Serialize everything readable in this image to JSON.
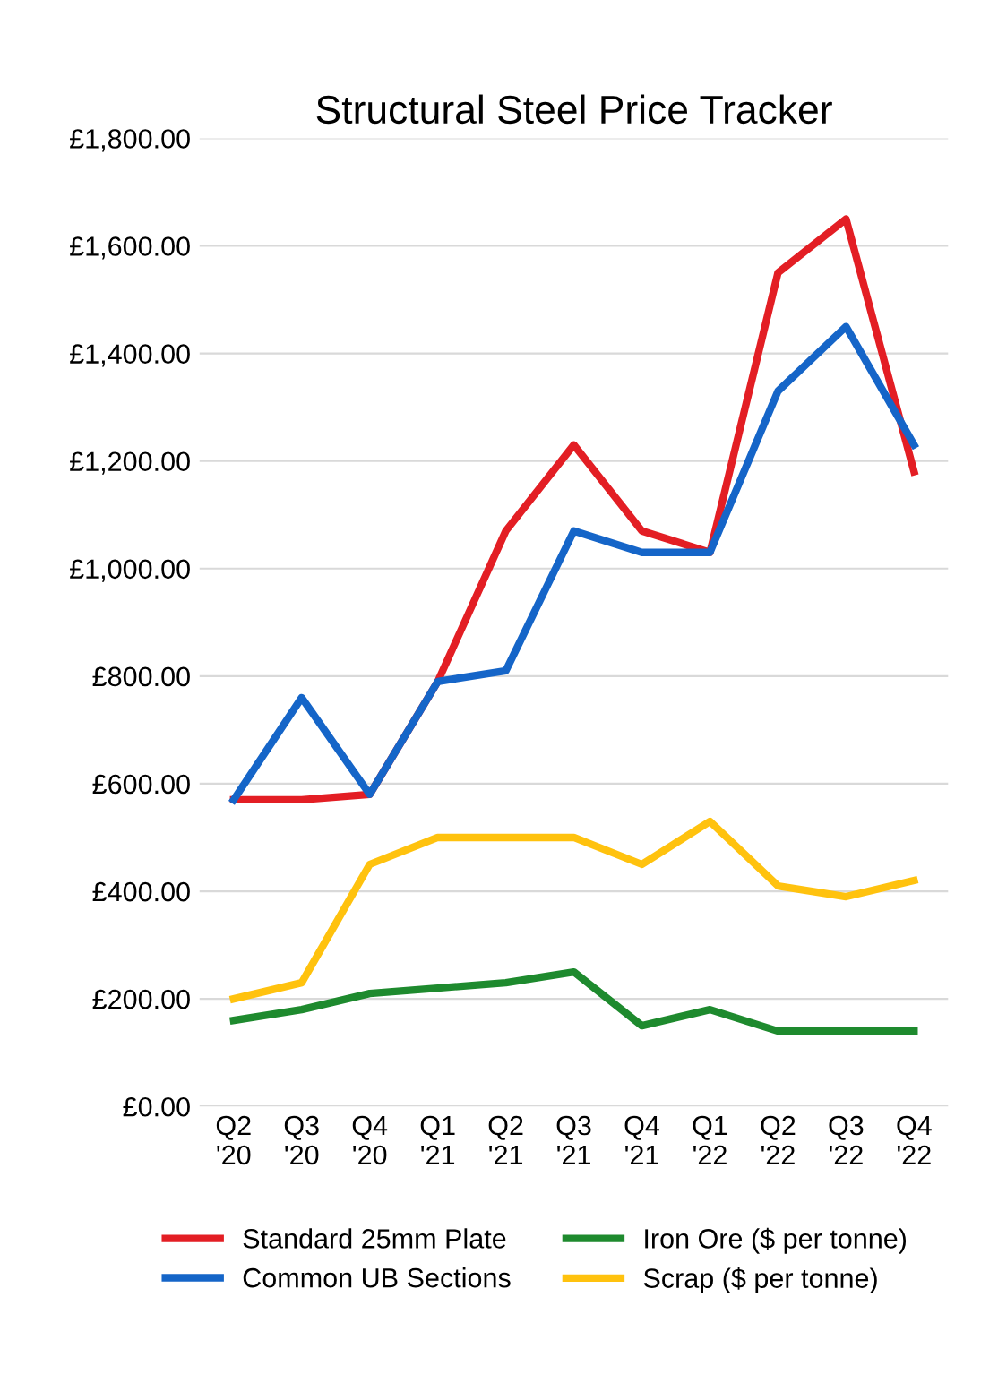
{
  "chart_data": {
    "type": "line",
    "title": "Structural Steel Price Tracker",
    "categories": [
      "Q2\n'20",
      "Q3\n'20",
      "Q4\n'20",
      "Q1\n'21",
      "Q2\n'21",
      "Q3\n'21",
      "Q4\n'21",
      "Q1\n'22",
      "Q2\n'22",
      "Q3\n'22",
      "Q4\n'22"
    ],
    "series": [
      {
        "name": "Standard 25mm Plate",
        "color": "#e31e24",
        "values": [
          570,
          570,
          580,
          790,
          1070,
          1230,
          1070,
          1030,
          1550,
          1650,
          1180
        ]
      },
      {
        "name": "Common UB Sections",
        "color": "#1565c8",
        "values": [
          570,
          760,
          580,
          790,
          810,
          1070,
          1030,
          1030,
          1330,
          1450,
          1230
        ]
      },
      {
        "name": "Iron Ore ($ per tonne)",
        "color": "#1e8a2e",
        "values": [
          160,
          180,
          210,
          220,
          230,
          250,
          150,
          180,
          140,
          140,
          140
        ]
      },
      {
        "name": "Scrap ($ per tonne)",
        "color": "#ffc20e",
        "values": [
          200,
          230,
          450,
          500,
          500,
          500,
          450,
          530,
          410,
          390,
          420
        ]
      }
    ],
    "ylim": [
      0,
      1800
    ],
    "yticks": [
      {
        "value": 0,
        "label": "£0.00"
      },
      {
        "value": 200,
        "label": "£200.00"
      },
      {
        "value": 400,
        "label": "£400.00"
      },
      {
        "value": 600,
        "label": "£600.00"
      },
      {
        "value": 800,
        "label": "£800.00"
      },
      {
        "value": 1000,
        "label": "£1,000.00"
      },
      {
        "value": 1200,
        "label": "£1,200.00"
      },
      {
        "value": 1400,
        "label": "£1,400.00"
      },
      {
        "value": 1600,
        "label": "£1,600.00"
      },
      {
        "value": 1800,
        "label": "£1,800.00"
      }
    ],
    "grid": "y",
    "legend": "bottom",
    "marker": "none",
    "line_style": "solid"
  }
}
